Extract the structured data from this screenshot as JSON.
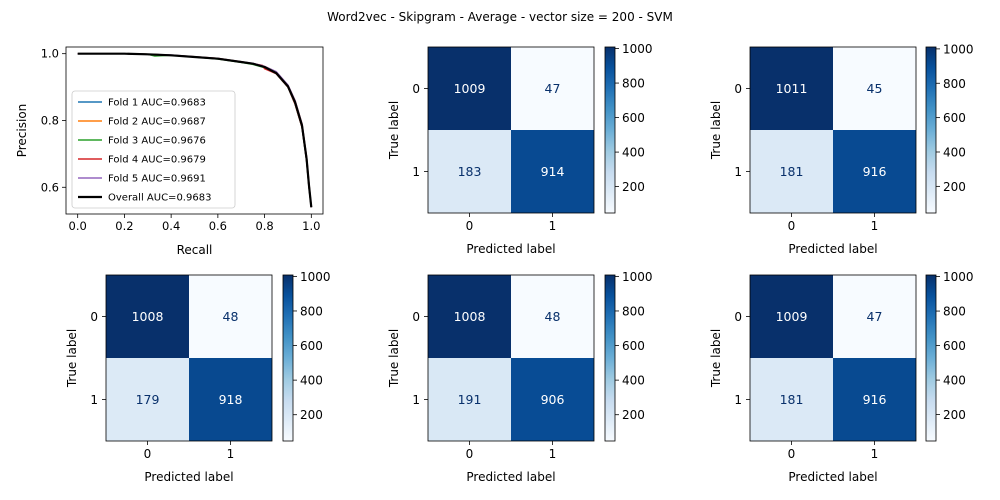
{
  "title": "Word2vec - Skipgram - Average - vector size = 200 - SVM",
  "chart_data": [
    {
      "type": "line",
      "xlabel": "Recall",
      "ylabel": "Precision",
      "xlim": [
        -0.05,
        1.05
      ],
      "ylim": [
        0.52,
        1.02
      ],
      "xticks": [
        0.0,
        0.2,
        0.4,
        0.6,
        0.8,
        1.0
      ],
      "xtick_labels": [
        "0.0",
        "0.2",
        "0.4",
        "0.6",
        "0.8",
        "1.0"
      ],
      "yticks": [
        0.6,
        0.8,
        1.0
      ],
      "ytick_labels": [
        "0.6",
        "0.8",
        "1.0"
      ],
      "legend_position": "lower-left",
      "grid": false,
      "series": [
        {
          "name": "Fold 1 AUC=0.9683",
          "color": "#1f77b4",
          "width": 1.5,
          "x": [
            0,
            0.2,
            0.3,
            0.4,
            0.5,
            0.6,
            0.7,
            0.75,
            0.8,
            0.85,
            0.9,
            0.93,
            0.96,
            0.98,
            0.99,
            1.0
          ],
          "y": [
            1.0,
            1.0,
            0.998,
            0.995,
            0.99,
            0.985,
            0.975,
            0.97,
            0.96,
            0.94,
            0.9,
            0.85,
            0.78,
            0.68,
            0.6,
            0.54
          ]
        },
        {
          "name": "Fold 2 AUC=0.9687",
          "color": "#ff7f0e",
          "width": 1.5,
          "x": [
            0,
            0.2,
            0.3,
            0.4,
            0.5,
            0.6,
            0.7,
            0.75,
            0.8,
            0.85,
            0.9,
            0.93,
            0.96,
            0.98,
            0.99,
            1.0
          ],
          "y": [
            1.0,
            1.0,
            0.998,
            0.995,
            0.991,
            0.986,
            0.976,
            0.97,
            0.962,
            0.945,
            0.905,
            0.86,
            0.79,
            0.69,
            0.61,
            0.54
          ]
        },
        {
          "name": "Fold 3 AUC=0.9676",
          "color": "#2ca02c",
          "width": 1.5,
          "x": [
            0,
            0.2,
            0.3,
            0.33,
            0.4,
            0.5,
            0.6,
            0.7,
            0.75,
            0.8,
            0.85,
            0.9,
            0.93,
            0.96,
            0.98,
            0.99,
            1.0
          ],
          "y": [
            1.0,
            1.0,
            0.998,
            0.993,
            0.995,
            0.99,
            0.984,
            0.974,
            0.968,
            0.958,
            0.94,
            0.9,
            0.85,
            0.78,
            0.68,
            0.6,
            0.54
          ]
        },
        {
          "name": "Fold 4 AUC=0.9679",
          "color": "#d62728",
          "width": 1.5,
          "x": [
            0,
            0.2,
            0.3,
            0.4,
            0.5,
            0.6,
            0.7,
            0.75,
            0.79,
            0.8,
            0.85,
            0.9,
            0.93,
            0.96,
            0.98,
            0.99,
            1.0
          ],
          "y": [
            1.0,
            1.0,
            0.998,
            0.995,
            0.99,
            0.985,
            0.975,
            0.97,
            0.965,
            0.955,
            0.94,
            0.9,
            0.85,
            0.78,
            0.68,
            0.6,
            0.54
          ]
        },
        {
          "name": "Fold 5 AUC=0.9691",
          "color": "#9467bd",
          "width": 1.5,
          "x": [
            0,
            0.2,
            0.3,
            0.4,
            0.5,
            0.6,
            0.7,
            0.75,
            0.8,
            0.85,
            0.9,
            0.93,
            0.96,
            0.98,
            0.99,
            1.0
          ],
          "y": [
            1.0,
            1.0,
            0.998,
            0.996,
            0.991,
            0.986,
            0.976,
            0.971,
            0.962,
            0.946,
            0.906,
            0.86,
            0.79,
            0.69,
            0.61,
            0.54
          ]
        },
        {
          "name": "Overall AUC=0.9683",
          "color": "#000000",
          "width": 2.2,
          "x": [
            0,
            0.2,
            0.3,
            0.4,
            0.5,
            0.6,
            0.7,
            0.75,
            0.8,
            0.85,
            0.9,
            0.93,
            0.96,
            0.98,
            0.99,
            1.0
          ],
          "y": [
            1.0,
            1.0,
            0.998,
            0.995,
            0.99,
            0.985,
            0.975,
            0.97,
            0.96,
            0.942,
            0.902,
            0.855,
            0.785,
            0.685,
            0.605,
            0.54
          ]
        }
      ]
    },
    {
      "type": "heatmap",
      "xlabel": "Predicted label",
      "ylabel": "True label",
      "x_tick_labels": [
        "0",
        "1"
      ],
      "y_tick_labels": [
        "0",
        "1"
      ],
      "values": [
        [
          1009,
          47
        ],
        [
          183,
          914
        ]
      ],
      "colorbar_ticks": [
        200,
        400,
        600,
        800,
        1000
      ]
    },
    {
      "type": "heatmap",
      "xlabel": "Predicted label",
      "ylabel": "True label",
      "x_tick_labels": [
        "0",
        "1"
      ],
      "y_tick_labels": [
        "0",
        "1"
      ],
      "values": [
        [
          1011,
          45
        ],
        [
          181,
          916
        ]
      ],
      "colorbar_ticks": [
        200,
        400,
        600,
        800,
        1000
      ]
    },
    {
      "type": "heatmap",
      "xlabel": "Predicted label",
      "ylabel": "True label",
      "x_tick_labels": [
        "0",
        "1"
      ],
      "y_tick_labels": [
        "0",
        "1"
      ],
      "values": [
        [
          1008,
          48
        ],
        [
          179,
          918
        ]
      ],
      "colorbar_ticks": [
        200,
        400,
        600,
        800,
        1000
      ]
    },
    {
      "type": "heatmap",
      "xlabel": "Predicted label",
      "ylabel": "True label",
      "x_tick_labels": [
        "0",
        "1"
      ],
      "y_tick_labels": [
        "0",
        "1"
      ],
      "values": [
        [
          1008,
          48
        ],
        [
          191,
          906
        ]
      ],
      "colorbar_ticks": [
        200,
        400,
        600,
        800,
        1000
      ]
    },
    {
      "type": "heatmap",
      "xlabel": "Predicted label",
      "ylabel": "True label",
      "x_tick_labels": [
        "0",
        "1"
      ],
      "y_tick_labels": [
        "0",
        "1"
      ],
      "values": [
        [
          1009,
          47
        ],
        [
          181,
          916
        ]
      ],
      "colorbar_ticks": [
        200,
        400,
        600,
        800,
        1000
      ]
    }
  ]
}
